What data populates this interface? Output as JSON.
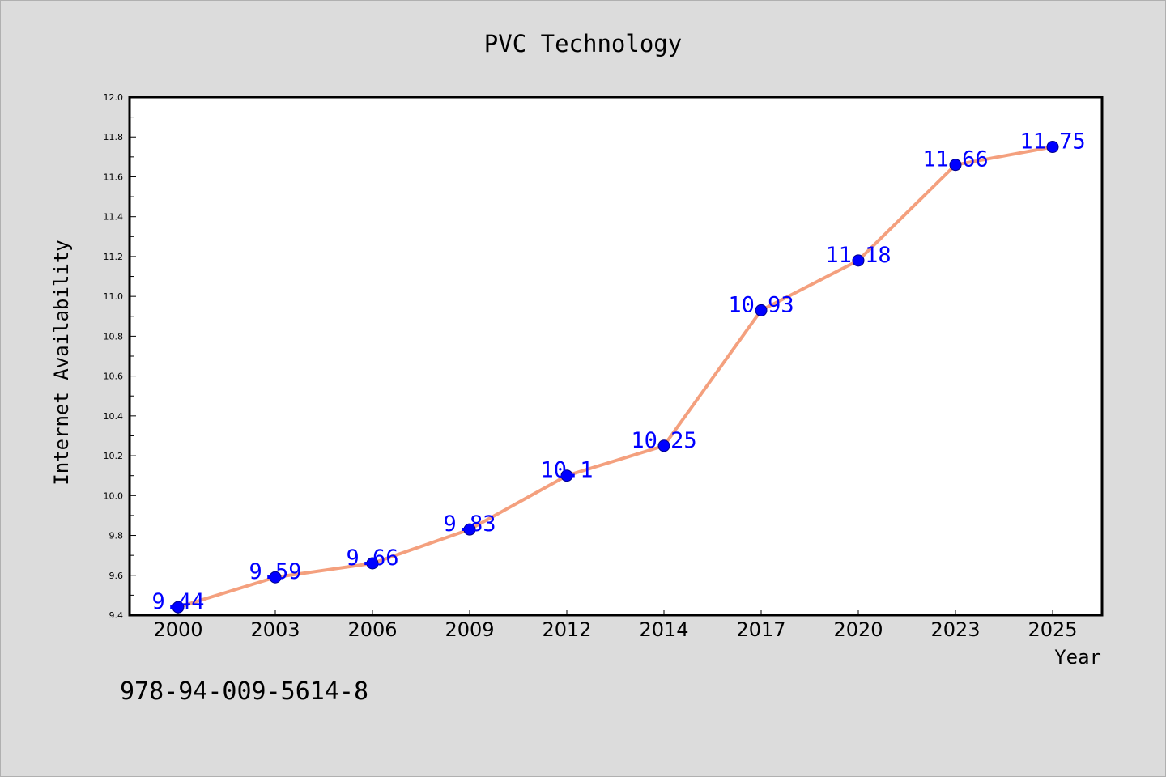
{
  "chart_data": {
    "type": "line",
    "title": "PVC Technology",
    "xlabel": "Year",
    "ylabel": "Internet Availability",
    "categories": [
      "2000",
      "2003",
      "2006",
      "2009",
      "2012",
      "2014",
      "2017",
      "2020",
      "2023",
      "2025"
    ],
    "series": [
      {
        "values": [
          9.44,
          9.59,
          9.66,
          9.83,
          10.1,
          10.25,
          10.93,
          11.18,
          11.66,
          11.75
        ],
        "data_labels": [
          "9.44",
          "9.59",
          "9.66",
          "9.83",
          "10.1",
          "10.25",
          "10.93",
          "11.18",
          "11.66",
          "11.75"
        ],
        "line_color": "#f4a07e",
        "marker_color": "#0000ff"
      }
    ],
    "ylim": [
      9.4,
      12.0
    ],
    "yticks": [
      "9.4",
      "9.6",
      "9.8",
      "10.0",
      "10.2",
      "10.4",
      "10.6",
      "10.8",
      "11.0",
      "11.2",
      "11.4",
      "11.6",
      "11.8",
      "12.0"
    ],
    "grid": false,
    "legend": "none",
    "label_color": "#0000ff"
  },
  "footer": {
    "isbn": "978-94-009-5614-8"
  },
  "colors": {
    "background": "#dcdcdc",
    "plot_area": "#ffffff"
  }
}
